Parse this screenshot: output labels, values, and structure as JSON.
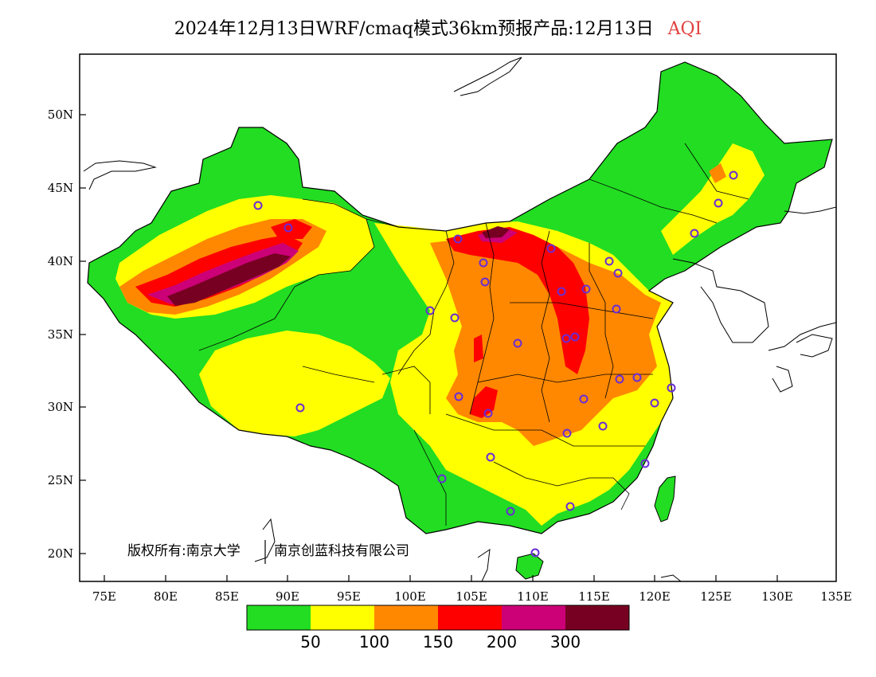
{
  "header": {
    "title": "2024年12月13日WRF/cmaq模式36km预报产品:12月13日",
    "variable": "AQI"
  },
  "map": {
    "x_ticks": [
      "75E",
      "80E",
      "85E",
      "90E",
      "95E",
      "100E",
      "105E",
      "110E",
      "115E",
      "120E",
      "125E",
      "130E",
      "135E"
    ],
    "y_ticks": [
      "50N",
      "45N",
      "40N",
      "35N",
      "30N",
      "25N",
      "20N"
    ],
    "copyright": "版权所有:南京大学 | 南京创蓝科技有限公司"
  },
  "colorbar": {
    "colors": [
      "#22dd22",
      "#ffff00",
      "#ff8800",
      "#ff0000",
      "#cc0077",
      "#770022"
    ],
    "labels": [
      "50",
      "100",
      "150",
      "200",
      "300"
    ]
  }
}
